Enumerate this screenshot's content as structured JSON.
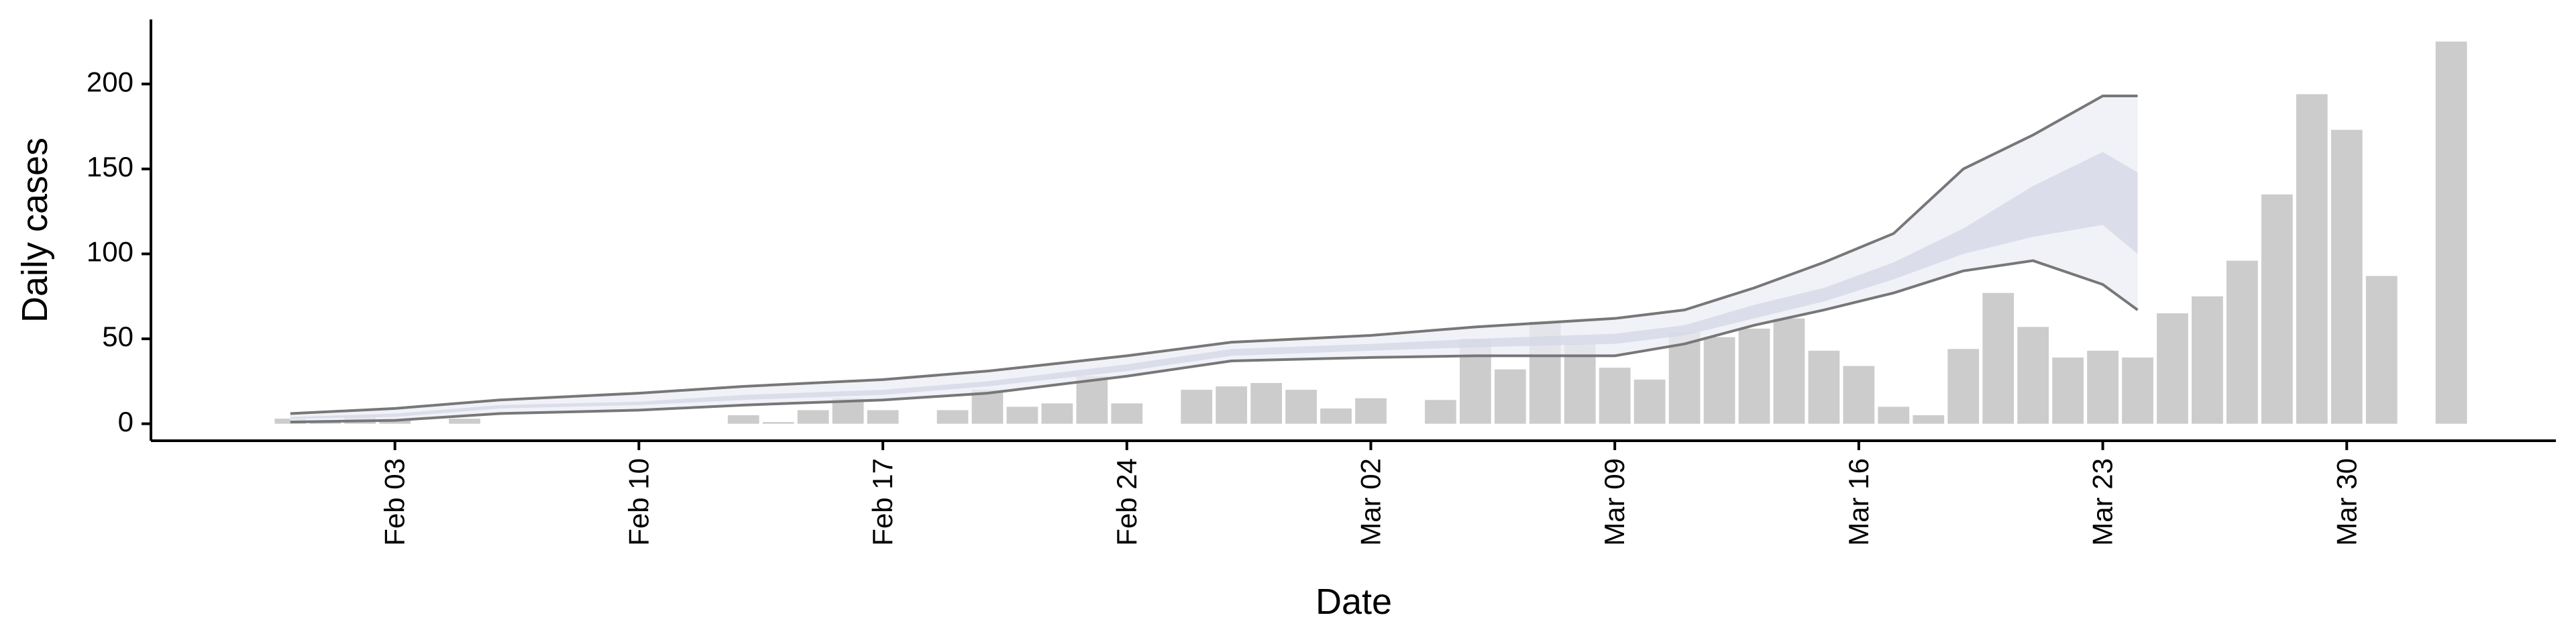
{
  "chart_data": {
    "type": "bar",
    "xlabel": "Date",
    "ylabel": "Daily cases",
    "x": [
      "Jan 31",
      "Feb 01",
      "Feb 02",
      "Feb 03",
      "Feb 04",
      "Feb 05",
      "Feb 06",
      "Feb 07",
      "Feb 08",
      "Feb 09",
      "Feb 10",
      "Feb 11",
      "Feb 12",
      "Feb 13",
      "Feb 14",
      "Feb 15",
      "Feb 16",
      "Feb 17",
      "Feb 18",
      "Feb 19",
      "Feb 20",
      "Feb 21",
      "Feb 22",
      "Feb 23",
      "Feb 24",
      "Feb 25",
      "Feb 26",
      "Feb 27",
      "Feb 28",
      "Feb 29",
      "Mar 01",
      "Mar 02",
      "Mar 03",
      "Mar 04",
      "Mar 05",
      "Mar 06",
      "Mar 07",
      "Mar 08",
      "Mar 09",
      "Mar 10",
      "Mar 11",
      "Mar 12",
      "Mar 13",
      "Mar 14",
      "Mar 15",
      "Mar 16",
      "Mar 17",
      "Mar 18",
      "Mar 19",
      "Mar 20",
      "Mar 21",
      "Mar 22",
      "Mar 23",
      "Mar 24",
      "Mar 25",
      "Mar 26",
      "Mar 27",
      "Mar 28",
      "Mar 29",
      "Mar 30",
      "Mar 31",
      "Apr 01",
      "Apr 02"
    ],
    "values": [
      3,
      2,
      4,
      2,
      0,
      3,
      0,
      0,
      0,
      0,
      0,
      0,
      0,
      5,
      1,
      8,
      15,
      8,
      0,
      8,
      20,
      10,
      12,
      28,
      12,
      0,
      20,
      22,
      24,
      20,
      9,
      15,
      0,
      14,
      50,
      32,
      60,
      47,
      33,
      26,
      54,
      51,
      56,
      62,
      43,
      34,
      10,
      5,
      44,
      77,
      57,
      39,
      43,
      39,
      65,
      75,
      96,
      135,
      194,
      173,
      87,
      0,
      225
    ],
    "color": "#cccccc",
    "xlim": [
      "Jan 27",
      "Apr 05"
    ],
    "xticks": [
      "Feb 03",
      "Feb 10",
      "Feb 17",
      "Feb 24",
      "Mar 02",
      "Mar 09",
      "Mar 16",
      "Mar 23",
      "Mar 30"
    ],
    "ylim": [
      -10,
      238
    ],
    "yticks": [
      0,
      50,
      100,
      150,
      200
    ],
    "band_x": [
      "Jan 31",
      "Feb 03",
      "Feb 06",
      "Feb 10",
      "Feb 13",
      "Feb 17",
      "Feb 20",
      "Feb 24",
      "Feb 27",
      "Mar 02",
      "Mar 05",
      "Mar 09",
      "Mar 11",
      "Mar 13",
      "Mar 15",
      "Mar 17",
      "Mar 19",
      "Mar 21",
      "Mar 23",
      "Mar 24"
    ],
    "bands": [
      {
        "color": "#eceef5",
        "outline": "#777777",
        "lower": [
          1,
          2,
          6,
          8,
          11,
          14,
          18,
          28,
          37,
          39,
          40,
          40,
          47,
          58,
          67,
          77,
          90,
          96,
          82,
          67
        ],
        "upper": [
          6,
          9,
          14,
          18,
          22,
          26,
          31,
          40,
          48,
          52,
          57,
          62,
          67,
          80,
          95,
          112,
          150,
          170,
          193,
          193
        ]
      },
      {
        "color": "#d3d7e6",
        "lower": [
          3,
          4,
          9,
          11,
          14,
          17,
          22,
          31,
          40,
          43,
          45,
          47,
          52,
          62,
          72,
          85,
          100,
          110,
          117,
          100
        ],
        "upper": [
          4,
          6,
          11,
          13,
          17,
          20,
          25,
          35,
          44,
          47,
          50,
          53,
          58,
          70,
          80,
          95,
          115,
          140,
          160,
          148
        ]
      }
    ]
  }
}
